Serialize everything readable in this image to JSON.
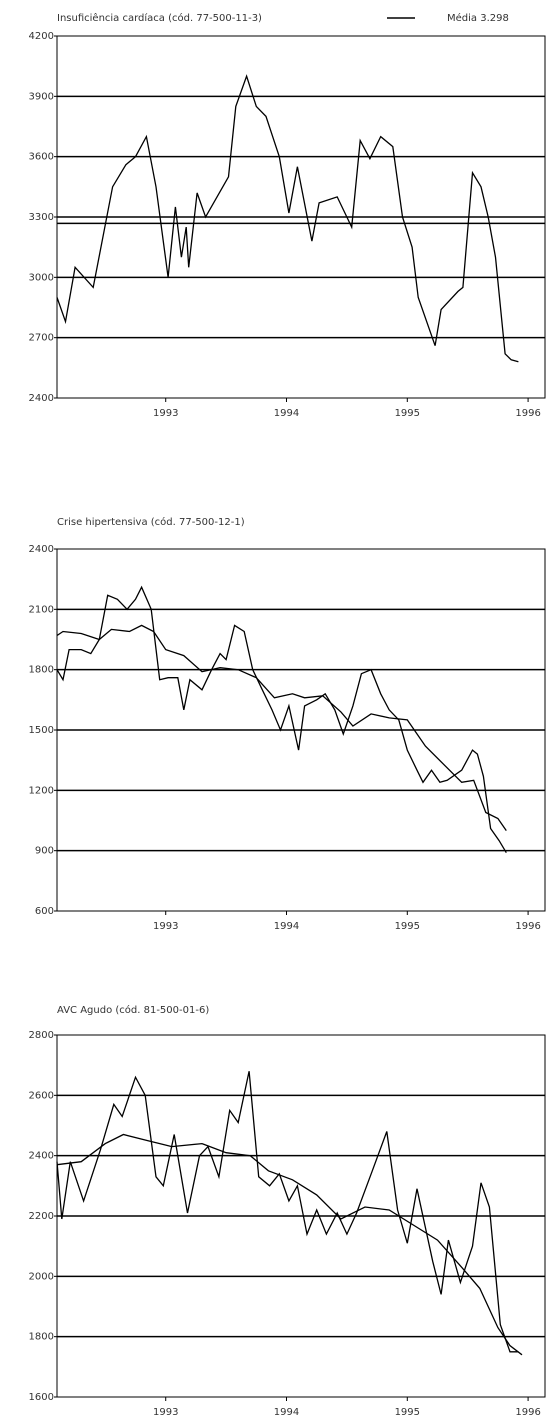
{
  "chart_data": [
    {
      "type": "line",
      "title": "Insuficiência cardíaca (cód. 77-500-11-3)",
      "xlim": [
        1992.1,
        1996.14
      ],
      "xticks": [
        1993,
        1994,
        1995,
        1996
      ],
      "ylim": [
        2400,
        4200
      ],
      "yticks": [
        2400,
        2700,
        3000,
        3300,
        3600,
        3900,
        4200
      ],
      "grid": true,
      "mean_line": {
        "name": "Média 3.298",
        "value": 3298,
        "color": "#000000"
      },
      "series": [
        {
          "color": "#000000",
          "x": [
            1992.1,
            1992.17,
            1992.25,
            1992.4,
            1992.56,
            1992.67,
            1992.75,
            1992.84,
            1992.92,
            1993.02,
            1993.08,
            1993.13,
            1993.17,
            1993.19,
            1993.26,
            1993.33,
            1993.52,
            1993.58,
            1993.67,
            1993.75,
            1993.83,
            1993.94,
            1994.02,
            1994.09,
            1994.21,
            1994.27,
            1994.42,
            1994.54,
            1994.61,
            1994.69,
            1994.78,
            1994.88,
            1994.96,
            1995.04,
            1995.09,
            1995.23,
            1995.28,
            1995.42,
            1995.46,
            1995.54,
            1995.61,
            1995.67,
            1995.73,
            1995.81,
            1995.86,
            1995.92
          ],
          "values": [
            2900,
            2780,
            3050,
            2950,
            3450,
            3560,
            3600,
            3700,
            3450,
            3000,
            3350,
            3100,
            3250,
            3050,
            3420,
            3300,
            3500,
            3850,
            4000,
            3850,
            3800,
            3600,
            3320,
            3550,
            3180,
            3370,
            3400,
            3250,
            3680,
            3590,
            3700,
            3650,
            3300,
            3150,
            2900,
            2660,
            2840,
            2930,
            2950,
            3520,
            3450,
            3300,
            3100,
            2620,
            2590,
            2580
          ]
        }
      ]
    },
    {
      "type": "line",
      "title": "Crise hipertensiva (cód. 77-500-12-1)",
      "xlim": [
        1992.1,
        1996.14
      ],
      "xticks": [
        1993,
        1994,
        1995,
        1996
      ],
      "ylim": [
        600,
        2400
      ],
      "yticks": [
        600,
        900,
        1200,
        1500,
        1800,
        2100,
        2400
      ],
      "grid": true,
      "series": [
        {
          "color": "#000000",
          "x": [
            1992.1,
            1992.15,
            1992.2,
            1992.3,
            1992.38,
            1992.45,
            1992.52,
            1992.6,
            1992.68,
            1992.75,
            1992.8,
            1992.88,
            1992.95,
            1993.02,
            1993.1,
            1993.15,
            1993.2,
            1993.3,
            1993.38,
            1993.45,
            1993.5,
            1993.57,
            1993.65,
            1993.72,
            1993.8,
            1993.88,
            1993.95,
            1994.02,
            1994.1,
            1994.15,
            1994.25,
            1994.32,
            1994.4,
            1994.47,
            1994.55,
            1994.62,
            1994.7,
            1994.78,
            1994.85,
            1994.93,
            1995.0,
            1995.08,
            1995.13,
            1995.2,
            1995.27,
            1995.33,
            1995.45,
            1995.54,
            1995.58,
            1995.63,
            1995.69,
            1995.76,
            1995.82
          ],
          "values": [
            1800,
            1750,
            1900,
            1900,
            1880,
            1950,
            2170,
            2150,
            2100,
            2150,
            2210,
            2100,
            1750,
            1760,
            1760,
            1600,
            1750,
            1700,
            1800,
            1880,
            1850,
            2020,
            1990,
            1800,
            1700,
            1600,
            1500,
            1620,
            1400,
            1620,
            1650,
            1680,
            1600,
            1480,
            1620,
            1780,
            1800,
            1680,
            1600,
            1550,
            1400,
            1300,
            1240,
            1300,
            1240,
            1250,
            1300,
            1400,
            1380,
            1270,
            1010,
            950,
            890
          ]
        },
        {
          "color": "#000000",
          "x": [
            1992.1,
            1992.15,
            1992.3,
            1992.45,
            1992.55,
            1992.7,
            1992.8,
            1992.9,
            1993.0,
            1993.15,
            1993.3,
            1993.45,
            1993.6,
            1993.75,
            1993.9,
            1994.05,
            1994.15,
            1994.3,
            1994.45,
            1994.55,
            1994.7,
            1994.85,
            1995.0,
            1995.15,
            1995.3,
            1995.45,
            1995.55,
            1995.65,
            1995.75,
            1995.82
          ],
          "values": [
            1970,
            1990,
            1980,
            1950,
            2000,
            1990,
            2020,
            1990,
            1900,
            1870,
            1790,
            1810,
            1800,
            1760,
            1660,
            1680,
            1660,
            1670,
            1590,
            1520,
            1580,
            1560,
            1550,
            1420,
            1330,
            1240,
            1250,
            1090,
            1060,
            1000
          ]
        }
      ]
    },
    {
      "type": "line",
      "title": "AVC Agudo (cód. 81-500-01-6)",
      "xlim": [
        1992.1,
        1996.14
      ],
      "xticks": [
        1993,
        1994,
        1995,
        1996
      ],
      "ylim": [
        1600,
        2800
      ],
      "yticks": [
        1600,
        1800,
        2000,
        2200,
        2400,
        2600,
        2800
      ],
      "grid": true,
      "series": [
        {
          "color": "#000000",
          "x": [
            1992.1,
            1992.14,
            1992.21,
            1992.32,
            1992.46,
            1992.57,
            1992.64,
            1992.75,
            1992.83,
            1992.92,
            1992.98,
            1993.07,
            1993.18,
            1993.28,
            1993.35,
            1993.44,
            1993.53,
            1993.6,
            1993.69,
            1993.77,
            1993.86,
            1993.94,
            1994.02,
            1994.09,
            1994.17,
            1994.25,
            1994.33,
            1994.42,
            1994.5,
            1994.58,
            1994.71,
            1994.83,
            1994.92,
            1995.0,
            1995.08,
            1995.14,
            1995.21,
            1995.28,
            1995.34,
            1995.44,
            1995.54,
            1995.61,
            1995.68,
            1995.77,
            1995.85,
            1995.92
          ],
          "values": [
            2380,
            2190,
            2380,
            2250,
            2420,
            2570,
            2530,
            2660,
            2600,
            2330,
            2300,
            2470,
            2210,
            2400,
            2430,
            2330,
            2550,
            2510,
            2680,
            2330,
            2300,
            2340,
            2250,
            2300,
            2140,
            2220,
            2140,
            2210,
            2140,
            2210,
            2350,
            2480,
            2220,
            2110,
            2290,
            2180,
            2050,
            1940,
            2120,
            1980,
            2100,
            2310,
            2230,
            1840,
            1750,
            1750
          ]
        },
        {
          "color": "#000000",
          "x": [
            1992.1,
            1992.3,
            1992.5,
            1992.65,
            1992.85,
            1993.05,
            1993.3,
            1993.5,
            1993.7,
            1993.85,
            1994.05,
            1994.25,
            1994.45,
            1994.65,
            1994.85,
            1995.05,
            1995.25,
            1995.45,
            1995.6,
            1995.75,
            1995.85,
            1995.95
          ],
          "values": [
            2370,
            2380,
            2440,
            2470,
            2450,
            2430,
            2440,
            2410,
            2400,
            2350,
            2320,
            2270,
            2190,
            2230,
            2220,
            2170,
            2120,
            2030,
            1960,
            1830,
            1770,
            1740
          ]
        }
      ]
    }
  ]
}
